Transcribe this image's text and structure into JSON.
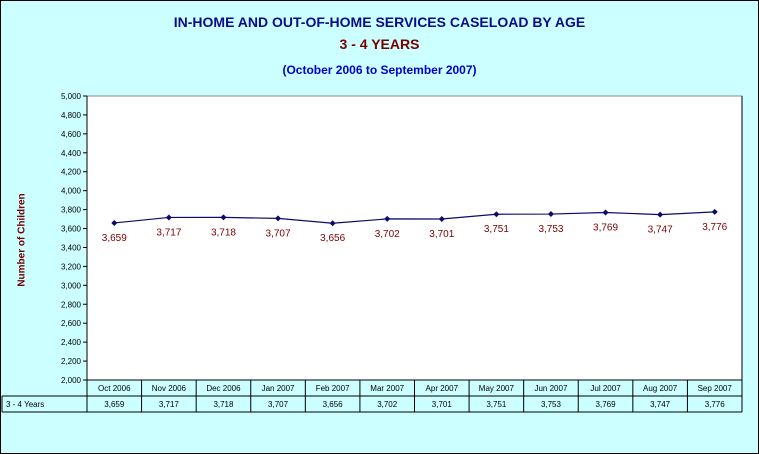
{
  "chart_data": {
    "type": "line",
    "title": "IN-HOME AND OUT-OF-HOME SERVICES CASELOAD BY AGE",
    "subtitle": "3 - 4 YEARS",
    "period": "(October 2006 to September 2007)",
    "ylabel": "Number of Children",
    "ylim": [
      2000,
      5000
    ],
    "ystep": 200,
    "ytick_labels": [
      "2,000",
      "2,200",
      "2,400",
      "2,600",
      "2,800",
      "3,000",
      "3,200",
      "3,400",
      "3,600",
      "3,800",
      "4,000",
      "4,200",
      "4,400",
      "4,600",
      "4,800",
      "5,000"
    ],
    "categories": [
      "Oct 2006",
      "Nov 2006",
      "Dec 2006",
      "Jan 2007",
      "Feb 2007",
      "Mar 2007",
      "Apr 2007",
      "May 2007",
      "Jun 2007",
      "Jul 2007",
      "Aug 2007",
      "Sep 2007"
    ],
    "series": [
      {
        "name": "3 - 4 Years",
        "values": [
          3659,
          3717,
          3718,
          3707,
          3656,
          3702,
          3701,
          3751,
          3753,
          3769,
          3747,
          3776
        ],
        "labels": [
          "3,659",
          "3,717",
          "3,718",
          "3,707",
          "3,656",
          "3,702",
          "3,701",
          "3,751",
          "3,753",
          "3,769",
          "3,747",
          "3,776"
        ]
      }
    ],
    "grid": false,
    "legend": "data-table",
    "colors": {
      "line": "#0b0b6b",
      "marker": "#0b0b6b",
      "data_label": "#7a0000",
      "plot_bg": "#ffffff",
      "chart_bg": "#ccffff"
    }
  }
}
